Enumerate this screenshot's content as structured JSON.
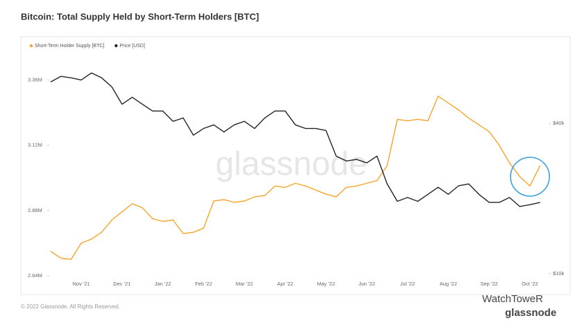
{
  "chart_data": {
    "type": "line",
    "title": "Bitcoin: Total Supply Held by Short-Term Holders [BTC]",
    "watermark": "glassnode",
    "legend": "top-left",
    "categories": [
      null,
      null,
      null,
      "Nov '21",
      null,
      null,
      null,
      "Dec '21",
      null,
      null,
      null,
      "Jan '22",
      null,
      null,
      null,
      "Feb '22",
      null,
      null,
      null,
      "Mar '22",
      null,
      null,
      null,
      "Apr '22",
      null,
      null,
      null,
      "May '22",
      null,
      null,
      null,
      "Jun '22",
      null,
      null,
      null,
      "Jul '22",
      null,
      null,
      null,
      "Aug '22",
      null,
      null,
      null,
      "Sep '22",
      null,
      null,
      null,
      "Oct '22",
      null
    ],
    "series": [
      {
        "name": "Short-Term Holder Supply [BTC]",
        "color": "#f7a428",
        "values": [
          2730000,
          2705000,
          2700000,
          2760000,
          2775000,
          2800000,
          2845000,
          2875000,
          2905000,
          2890000,
          2850000,
          2840000,
          2845000,
          2795000,
          2800000,
          2815000,
          2915000,
          2920000,
          2910000,
          2915000,
          2930000,
          2935000,
          2970000,
          2965000,
          2980000,
          2970000,
          2955000,
          2940000,
          2930000,
          2965000,
          2970000,
          2980000,
          2990000,
          3045000,
          3215000,
          3210000,
          3215000,
          3210000,
          3300000,
          3275000,
          3250000,
          3220000,
          3195000,
          3170000,
          3120000,
          3055000,
          3005000,
          2970000,
          3045000
        ]
      },
      {
        "name": "Price [USD]",
        "color": "#222222",
        "axis": "y2",
        "values": [
          58700,
          61800,
          61000,
          59800,
          63800,
          61000,
          56100,
          47800,
          51000,
          47800,
          44900,
          44900,
          40800,
          42100,
          35900,
          38200,
          39500,
          37000,
          39500,
          40800,
          38200,
          42100,
          44900,
          44900,
          39500,
          38200,
          38200,
          37500,
          29600,
          28300,
          28700,
          27800,
          29600,
          22900,
          19500,
          20200,
          19500,
          20800,
          22200,
          20800,
          22500,
          22900,
          20800,
          19300,
          19300,
          20200,
          18600,
          18900,
          19300
        ]
      }
    ],
    "ylim": [
      2640000,
      3450000
    ],
    "yticks": [
      {
        "value": 2640000,
        "label": "2.64M"
      },
      {
        "value": 2880000,
        "label": "2.88M"
      },
      {
        "value": 3120000,
        "label": "3.12M"
      },
      {
        "value": 3360000,
        "label": "3.36M"
      }
    ],
    "y2lim": [
      9800,
      75000
    ],
    "y2log": true,
    "y2ticks": [
      {
        "value": 10000,
        "label": "$10k"
      },
      {
        "value": 40000,
        "label": "$40k"
      }
    ]
  },
  "footer": {
    "copyright": "© 2022 Glassnode. All Rights Reserved.",
    "channel": "WatchToweR",
    "brand": "glassnode"
  }
}
